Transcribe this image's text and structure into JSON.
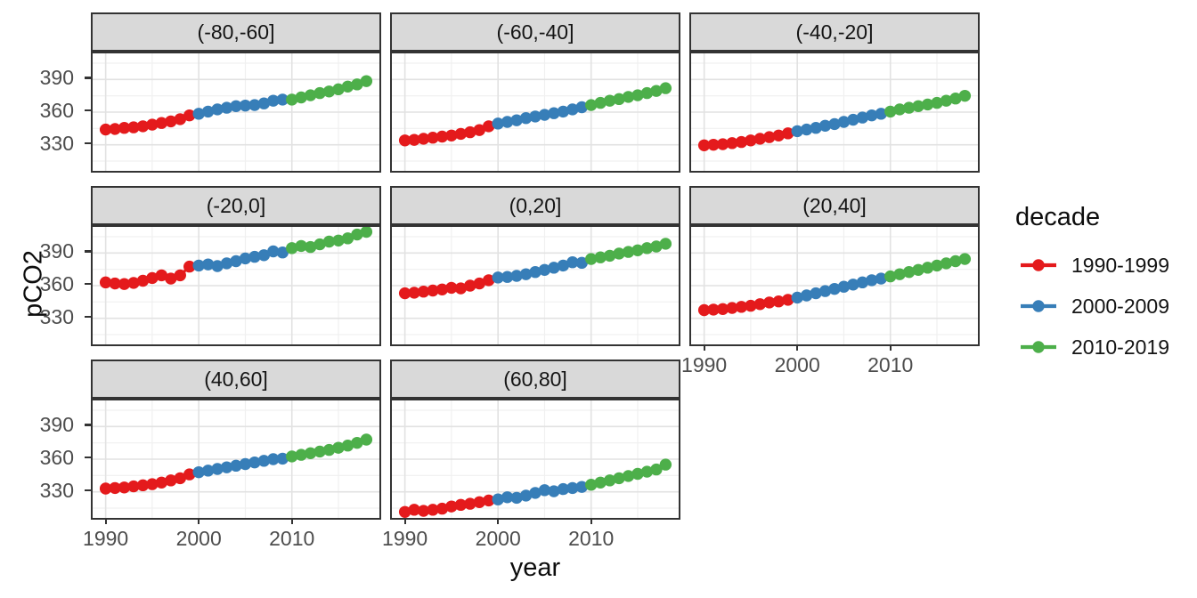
{
  "chart_data": {
    "type": "scatter",
    "title": "",
    "xlabel": "year",
    "ylabel": "pCO2",
    "x_start_year": 1990,
    "x_ticks": [
      "1990",
      "2000",
      "2010"
    ],
    "x_tick_values": [
      1990,
      2000,
      2010
    ],
    "x_minor_values": [
      1995,
      2005,
      2015
    ],
    "y_ticks": [
      "390",
      "360",
      "330"
    ],
    "y_tick_values": [
      390,
      360,
      330
    ],
    "y_minor_values": [
      315,
      345,
      375,
      405
    ],
    "xlim": [
      1988.6,
      2019.4
    ],
    "ylim": [
      306,
      414
    ],
    "grid": "major-and-minor",
    "legend": {
      "title": "decade",
      "position": "right",
      "entries": [
        {
          "label": "1990-1999",
          "color": "#E41A1C"
        },
        {
          "label": "2000-2009",
          "color": "#377EB8"
        },
        {
          "label": "2010-2019",
          "color": "#4DAF4A"
        }
      ]
    },
    "facets": [
      {
        "label": "(-80,-60]",
        "values": [
          344,
          344.5,
          345.5,
          346,
          347,
          348.5,
          350,
          351.5,
          353.5,
          357,
          358.5,
          360.5,
          362.5,
          364,
          365.5,
          366,
          366.5,
          368,
          370.5,
          371.5,
          371.5,
          373.5,
          375.5,
          377.5,
          379,
          381,
          383.5,
          385.5,
          388.5
        ]
      },
      {
        "label": "(-60,-40]",
        "values": [
          334,
          334.5,
          335.5,
          336.5,
          337.5,
          338.5,
          340,
          341.5,
          343.5,
          347,
          349.5,
          351,
          352.5,
          354.5,
          356,
          357.5,
          359,
          360.5,
          362.5,
          364.5,
          366.5,
          368.5,
          370.5,
          372,
          374,
          375.5,
          377.5,
          379.5,
          382
        ]
      },
      {
        "label": "(-40,-20]",
        "values": [
          329.5,
          330,
          330.5,
          331.5,
          332.5,
          334,
          335.5,
          337,
          338.5,
          340.5,
          342.5,
          344,
          345.5,
          347.5,
          349,
          351,
          353,
          355,
          357,
          358.5,
          360.5,
          362.5,
          364,
          365.5,
          367,
          368.5,
          370.5,
          372.5,
          375
        ]
      },
      {
        "label": "(-20,0]",
        "values": [
          363,
          362,
          361.5,
          362.5,
          364.5,
          367,
          369.5,
          366.5,
          369.5,
          377.5,
          378.5,
          379.5,
          378,
          380.5,
          382.5,
          385,
          386.5,
          388,
          391.5,
          390.5,
          394.5,
          396.5,
          395.5,
          398,
          400.5,
          401.5,
          403.5,
          407,
          409.5
        ]
      },
      {
        "label": "(0,20]",
        "values": [
          353,
          353.5,
          354.5,
          355.5,
          356.5,
          358,
          357.5,
          360,
          362,
          365,
          367.5,
          368,
          369,
          370.5,
          372.5,
          374.5,
          376.5,
          378.5,
          381.5,
          381,
          384.5,
          386,
          387.5,
          389.5,
          391,
          392.5,
          394.5,
          396,
          398.5
        ]
      },
      {
        "label": "(20,40]",
        "values": [
          337.5,
          338,
          338.5,
          339.5,
          340.5,
          341.5,
          343,
          344.5,
          345.5,
          347,
          349,
          351,
          353,
          355,
          357,
          359,
          361,
          363,
          365,
          366.5,
          368.5,
          370.5,
          372.5,
          374.5,
          376.5,
          378.5,
          380.5,
          382.5,
          384.5
        ]
      },
      {
        "label": "(40,60]",
        "values": [
          333,
          333.5,
          334,
          335,
          336,
          337,
          338.5,
          340.5,
          342.5,
          346,
          348,
          349.5,
          351,
          352.5,
          354,
          355.5,
          357,
          358.5,
          360,
          360.5,
          362.5,
          364,
          365.5,
          367,
          368.5,
          370.5,
          372.5,
          375,
          378
        ]
      },
      {
        "label": "(60,80]",
        "values": [
          311.5,
          313.5,
          312.5,
          313.5,
          314.5,
          316.5,
          318,
          319,
          320.5,
          322,
          323,
          325,
          324.5,
          326.5,
          329,
          331.5,
          330.5,
          332.5,
          333.5,
          334.5,
          336.5,
          338.5,
          340.5,
          342.5,
          344.5,
          346.5,
          348.5,
          350.5,
          355
        ]
      }
    ]
  }
}
